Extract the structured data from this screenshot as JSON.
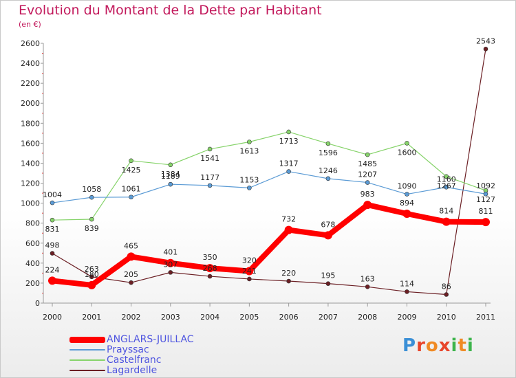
{
  "title": "Evolution du Montant de la Dette par Habitant",
  "subtitle": "(en €)",
  "logo": {
    "letters": [
      "P",
      "r",
      "o",
      "x",
      "i",
      "t",
      "i"
    ],
    "colors": [
      "#3a8fd6",
      "#e8442a",
      "#f08a24",
      "#e8442a",
      "#3cb44b",
      "#f08a24",
      "#3cb44b"
    ]
  },
  "chart_data": {
    "type": "line",
    "x": [
      "2000",
      "2001",
      "2002",
      "2003",
      "2004",
      "2005",
      "2006",
      "2007",
      "2008",
      "2009",
      "2010",
      "2011"
    ],
    "ylim": [
      0,
      2600
    ],
    "yticks": [
      0,
      200,
      400,
      600,
      800,
      1000,
      1200,
      1400,
      1600,
      1800,
      2000,
      2200,
      2400,
      2600
    ],
    "grid": false,
    "legend_position": "bottom-left",
    "series": [
      {
        "name": "Lagardelle",
        "color": "#6b1f24",
        "width": 1.2,
        "marker": 3,
        "labelSide": "above",
        "values": [
          498,
          263,
          205,
          307,
          268,
          241,
          220,
          195,
          163,
          114,
          86,
          2543
        ]
      },
      {
        "name": "Castelfranc",
        "color": "#86d36a",
        "width": 1.2,
        "marker": 3,
        "labelSide": "below",
        "values": [
          831,
          839,
          1425,
          1384,
          1541,
          1613,
          1713,
          1596,
          1485,
          1600,
          1267,
          1127
        ]
      },
      {
        "name": "Prayssac",
        "color": "#5b9bd5",
        "width": 1.2,
        "marker": 3,
        "labelSide": "above",
        "values": [
          1004,
          1058,
          1061,
          1189,
          1177,
          1153,
          1317,
          1246,
          1207,
          1090,
          1160,
          1092
        ]
      },
      {
        "name": "ANGLARS-JUILLAC",
        "color": "#ff0000",
        "width": 8,
        "marker": 6,
        "labelSide": "above",
        "values": [
          224,
          180,
          465,
          401,
          350,
          320,
          732,
          678,
          983,
          894,
          814,
          811
        ]
      }
    ]
  }
}
